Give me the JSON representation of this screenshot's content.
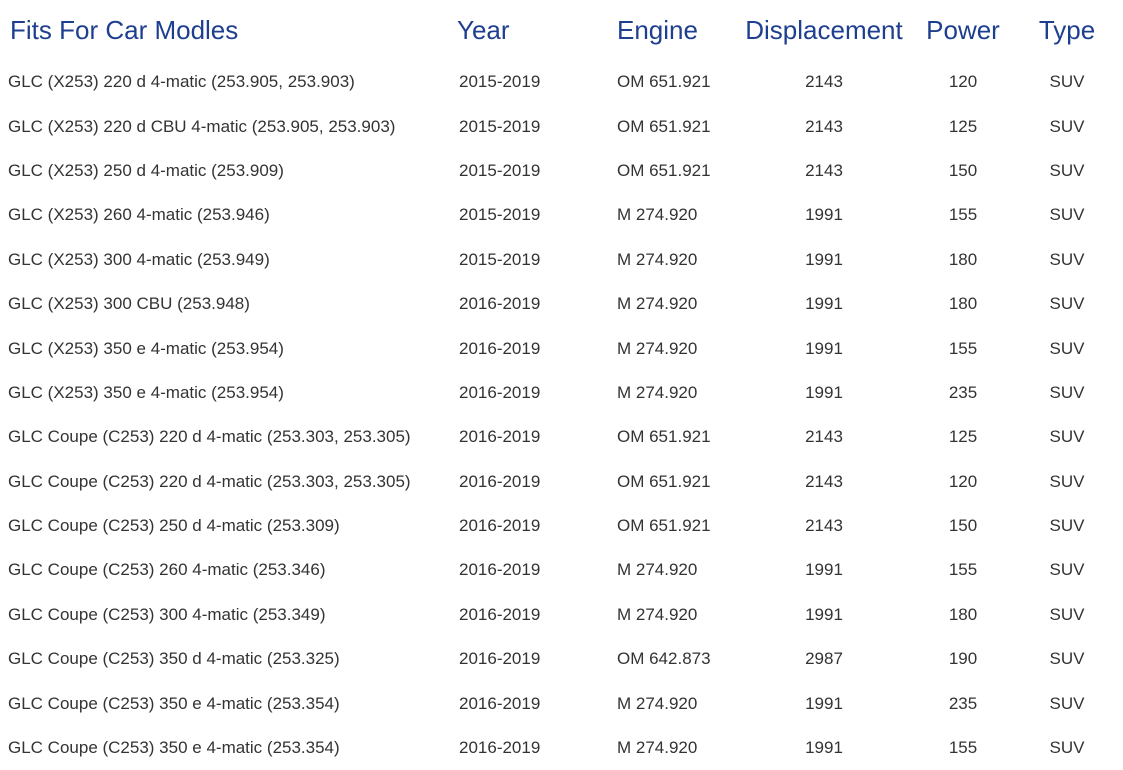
{
  "headers": {
    "model": "Fits For Car Modles",
    "year": "Year",
    "engine": "Engine",
    "displacement": "Displacement",
    "power": "Power",
    "type": "Type"
  },
  "rows": [
    {
      "model": "GLC (X253) 220 d 4-matic (253.905, 253.903)",
      "year": "2015-2019",
      "engine": "OM 651.921",
      "displacement": "2143",
      "power": "120",
      "type": "SUV"
    },
    {
      "model": "GLC (X253) 220 d CBU 4-matic (253.905, 253.903)",
      "year": "2015-2019",
      "engine": "OM 651.921",
      "displacement": "2143",
      "power": "125",
      "type": "SUV"
    },
    {
      "model": "GLC (X253) 250 d 4-matic (253.909)",
      "year": "2015-2019",
      "engine": "OM 651.921",
      "displacement": "2143",
      "power": "150",
      "type": "SUV"
    },
    {
      "model": "GLC (X253) 260 4-matic (253.946)",
      "year": "2015-2019",
      "engine": "M 274.920",
      "displacement": "1991",
      "power": "155",
      "type": "SUV"
    },
    {
      "model": "GLC (X253) 300 4-matic (253.949)",
      "year": "2015-2019",
      "engine": "M 274.920",
      "displacement": "1991",
      "power": "180",
      "type": "SUV"
    },
    {
      "model": "GLC (X253) 300 CBU (253.948)",
      "year": "2016-2019",
      "engine": "M 274.920",
      "displacement": "1991",
      "power": "180",
      "type": "SUV"
    },
    {
      "model": "GLC (X253) 350 e 4-matic (253.954)",
      "year": "2016-2019",
      "engine": "M 274.920",
      "displacement": "1991",
      "power": "155",
      "type": "SUV"
    },
    {
      "model": "GLC (X253) 350 e 4-matic (253.954)",
      "year": "2016-2019",
      "engine": "M 274.920",
      "displacement": "1991",
      "power": "235",
      "type": "SUV"
    },
    {
      "model": "GLC Coupe (C253) 220 d 4-matic (253.303, 253.305)",
      "year": "2016-2019",
      "engine": "OM 651.921",
      "displacement": "2143",
      "power": "125",
      "type": "SUV"
    },
    {
      "model": "GLC Coupe (C253) 220 d 4-matic (253.303, 253.305)",
      "year": "2016-2019",
      "engine": "OM 651.921",
      "displacement": "2143",
      "power": "120",
      "type": "SUV"
    },
    {
      "model": "GLC Coupe (C253) 250 d 4-matic (253.309)",
      "year": "2016-2019",
      "engine": "OM 651.921",
      "displacement": "2143",
      "power": "150",
      "type": "SUV"
    },
    {
      "model": "GLC Coupe (C253) 260 4-matic (253.346)",
      "year": "2016-2019",
      "engine": "M 274.920",
      "displacement": "1991",
      "power": "155",
      "type": "SUV"
    },
    {
      "model": "GLC Coupe (C253) 300 4-matic (253.349)",
      "year": "2016-2019",
      "engine": "M 274.920",
      "displacement": "1991",
      "power": "180",
      "type": "SUV"
    },
    {
      "model": "GLC Coupe (C253) 350 d 4-matic (253.325)",
      "year": "2016-2019",
      "engine": "OM 642.873",
      "displacement": "2987",
      "power": "190",
      "type": "SUV"
    },
    {
      "model": "GLC Coupe (C253) 350 e 4-matic (253.354)",
      "year": "2016-2019",
      "engine": "M 274.920",
      "displacement": "1991",
      "power": "235",
      "type": "SUV"
    },
    {
      "model": "GLC Coupe (C253) 350 e 4-matic (253.354)",
      "year": "2016-2019",
      "engine": "M 274.920",
      "displacement": "1991",
      "power": "155",
      "type": "SUV"
    }
  ]
}
